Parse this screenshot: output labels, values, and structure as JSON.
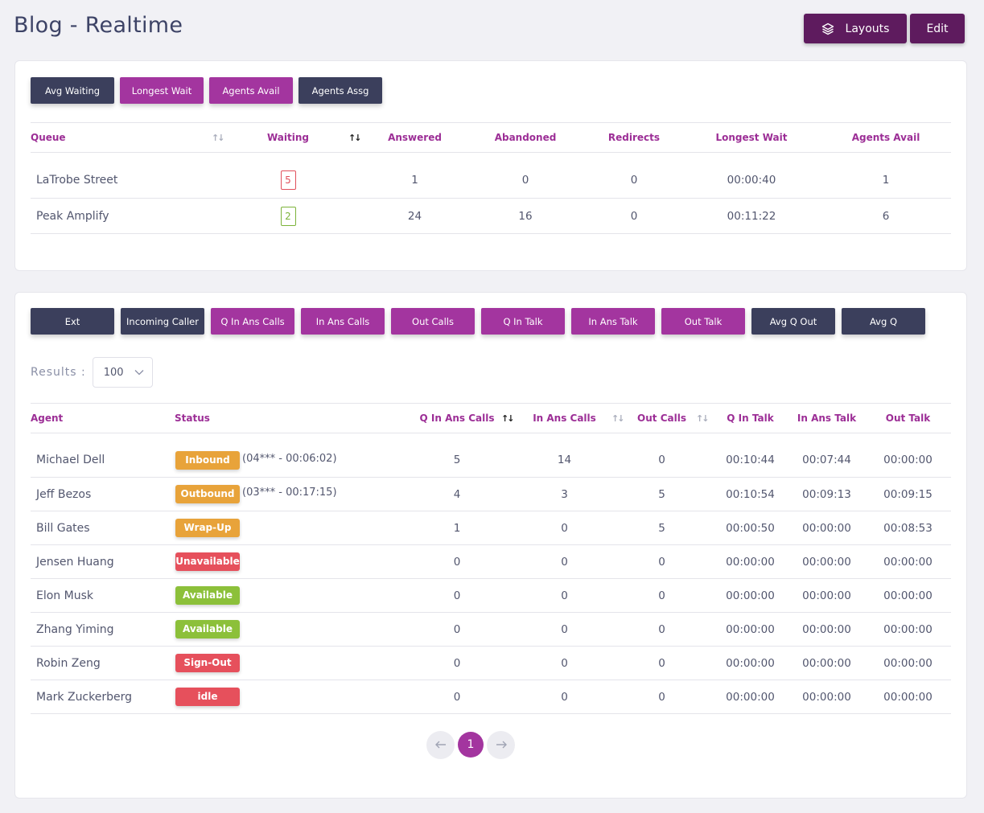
{
  "page": {
    "title": "Blog - Realtime"
  },
  "header": {
    "layouts_label": "Layouts",
    "edit_label": "Edit"
  },
  "queue_card": {
    "toggles": [
      {
        "label": "Avg Waiting",
        "active": false
      },
      {
        "label": "Longest Wait",
        "active": true
      },
      {
        "label": "Agents Avail",
        "active": true
      },
      {
        "label": "Agents Assg",
        "active": false
      }
    ],
    "columns": [
      "Queue",
      "Waiting",
      "Answered",
      "Abandoned",
      "Redirects",
      "Longest Wait",
      "Agents Avail"
    ],
    "rows": [
      {
        "queue": "LaTrobe Street",
        "waiting": "5",
        "waiting_color": "red",
        "answered": "1",
        "abandoned": "0",
        "redirects": "0",
        "longest_wait": "00:00:40",
        "agents_avail": "1"
      },
      {
        "queue": "Peak Amplify",
        "waiting": "2",
        "waiting_color": "green",
        "answered": "24",
        "abandoned": "16",
        "redirects": "0",
        "longest_wait": "00:11:22",
        "agents_avail": "6"
      }
    ]
  },
  "agent_card": {
    "toggles": [
      {
        "label": "Ext",
        "active": false
      },
      {
        "label": "Incoming Caller",
        "active": false
      },
      {
        "label": "Q In Ans Calls",
        "active": true
      },
      {
        "label": "In Ans Calls",
        "active": true
      },
      {
        "label": "Out Calls",
        "active": true
      },
      {
        "label": "Q In Talk",
        "active": true
      },
      {
        "label": "In Ans Talk",
        "active": true
      },
      {
        "label": "Out Talk",
        "active": true
      },
      {
        "label": "Avg Q Out",
        "active": false
      },
      {
        "label": "Avg Q",
        "active": false
      }
    ],
    "results_label": "Results :",
    "results_value": "100",
    "columns": [
      "Agent",
      "Status",
      "Q In Ans Calls",
      "In Ans Calls",
      "Out Calls",
      "Q In Talk",
      "In Ans Talk",
      "Out Talk"
    ],
    "rows": [
      {
        "agent": "Michael Dell",
        "status": "Inbound",
        "status_color": "#e8a33a",
        "call_info": "(04*** - 00:06:02)",
        "q_in_ans_calls": "5",
        "in_ans_calls": "14",
        "out_calls": "0",
        "q_in_talk": "00:10:44",
        "in_ans_talk": "00:07:44",
        "out_talk": "00:00:00"
      },
      {
        "agent": "Jeff Bezos",
        "status": "Outbound",
        "status_color": "#e8a33a",
        "call_info": "(03*** - 00:17:15)",
        "q_in_ans_calls": "4",
        "in_ans_calls": "3",
        "out_calls": "5",
        "q_in_talk": "00:10:54",
        "in_ans_talk": "00:09:13",
        "out_talk": "00:09:15"
      },
      {
        "agent": "Bill Gates",
        "status": "Wrap-Up",
        "status_color": "#e8a33a",
        "call_info": "",
        "q_in_ans_calls": "1",
        "in_ans_calls": "0",
        "out_calls": "5",
        "q_in_talk": "00:00:50",
        "in_ans_talk": "00:00:00",
        "out_talk": "00:08:53"
      },
      {
        "agent": "Jensen Huang",
        "status": "Unavailable",
        "status_color": "#e6505c",
        "call_info": "",
        "q_in_ans_calls": "0",
        "in_ans_calls": "0",
        "out_calls": "0",
        "q_in_talk": "00:00:00",
        "in_ans_talk": "00:00:00",
        "out_talk": "00:00:00"
      },
      {
        "agent": "Elon Musk",
        "status": "Available",
        "status_color": "#8cc03a",
        "call_info": "",
        "q_in_ans_calls": "0",
        "in_ans_calls": "0",
        "out_calls": "0",
        "q_in_talk": "00:00:00",
        "in_ans_talk": "00:00:00",
        "out_talk": "00:00:00"
      },
      {
        "agent": "Zhang Yiming",
        "status": "Available",
        "status_color": "#8cc03a",
        "call_info": "",
        "q_in_ans_calls": "0",
        "in_ans_calls": "0",
        "out_calls": "0",
        "q_in_talk": "00:00:00",
        "in_ans_talk": "00:00:00",
        "out_talk": "00:00:00"
      },
      {
        "agent": "Robin Zeng",
        "status": "Sign-Out",
        "status_color": "#e6505c",
        "call_info": "",
        "q_in_ans_calls": "0",
        "in_ans_calls": "0",
        "out_calls": "0",
        "q_in_talk": "00:00:00",
        "in_ans_talk": "00:00:00",
        "out_talk": "00:00:00"
      },
      {
        "agent": "Mark Zuckerberg",
        "status": "idle",
        "status_color": "#e6505c",
        "call_info": "",
        "q_in_ans_calls": "0",
        "in_ans_calls": "0",
        "out_calls": "0",
        "q_in_talk": "00:00:00",
        "in_ans_talk": "00:00:00",
        "out_talk": "00:00:00"
      }
    ],
    "pagination": {
      "prev_icon": "arrow-left-icon",
      "current": "1",
      "next_icon": "arrow-right-icon"
    }
  }
}
